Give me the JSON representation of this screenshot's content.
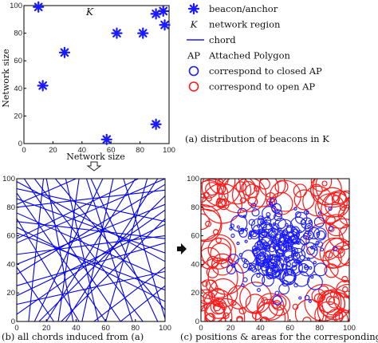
{
  "chart_data": [
    {
      "id": "a",
      "type": "scatter",
      "caption": "(a) distribution  of beacons in K",
      "xlabel": "Network size",
      "ylabel": "Network size",
      "region_label": "K",
      "xlim": [
        0,
        100
      ],
      "ylim": [
        0,
        100
      ],
      "xticks": [
        "0",
        "20",
        "40",
        "60",
        "80",
        "100"
      ],
      "yticks": [
        "0",
        "20",
        "40",
        "60",
        "80",
        "100"
      ],
      "marker_color": "#1a1aff",
      "points": [
        {
          "x": 10,
          "y": 99
        },
        {
          "x": 13,
          "y": 42
        },
        {
          "x": 28,
          "y": 66
        },
        {
          "x": 57,
          "y": 3
        },
        {
          "x": 64,
          "y": 80
        },
        {
          "x": 82,
          "y": 80
        },
        {
          "x": 91,
          "y": 94
        },
        {
          "x": 91,
          "y": 14
        },
        {
          "x": 96,
          "y": 96
        },
        {
          "x": 97,
          "y": 86
        }
      ]
    },
    {
      "id": "b",
      "type": "line",
      "caption": "(b) all chords induced from (a)",
      "xlim": [
        0,
        100
      ],
      "ylim": [
        0,
        100
      ],
      "xticks": [
        "0",
        "20",
        "40",
        "60",
        "80",
        "100"
      ],
      "yticks": [
        "0",
        "20",
        "40",
        "60",
        "80",
        "100"
      ],
      "line_color": "#0000ee",
      "chords": [
        [
          [
            0,
            98
          ],
          [
            100,
            42
          ]
        ],
        [
          [
            0,
            86
          ],
          [
            100,
            48
          ]
        ],
        [
          [
            0,
            80
          ],
          [
            100,
            92
          ]
        ],
        [
          [
            0,
            70
          ],
          [
            100,
            58
          ]
        ],
        [
          [
            0,
            62
          ],
          [
            100,
            22
          ]
        ],
        [
          [
            0,
            55
          ],
          [
            100,
            100
          ]
        ],
        [
          [
            0,
            47
          ],
          [
            100,
            60
          ]
        ],
        [
          [
            0,
            40
          ],
          [
            100,
            82
          ]
        ],
        [
          [
            0,
            33
          ],
          [
            100,
            96
          ]
        ],
        [
          [
            0,
            25
          ],
          [
            100,
            55
          ]
        ],
        [
          [
            0,
            18
          ],
          [
            100,
            68
          ]
        ],
        [
          [
            0,
            93
          ],
          [
            100,
            70
          ]
        ],
        [
          [
            0,
            12
          ],
          [
            100,
            35
          ]
        ],
        [
          [
            0,
            66
          ],
          [
            100,
            14
          ]
        ],
        [
          [
            0,
            76
          ],
          [
            100,
            30
          ]
        ],
        [
          [
            5,
            100
          ],
          [
            70,
            0
          ]
        ],
        [
          [
            12,
            100
          ],
          [
            85,
            0
          ]
        ],
        [
          [
            20,
            100
          ],
          [
            38,
            0
          ]
        ],
        [
          [
            26,
            100
          ],
          [
            100,
            8
          ]
        ],
        [
          [
            33,
            100
          ],
          [
            55,
            0
          ]
        ],
        [
          [
            42,
            100
          ],
          [
            28,
            0
          ]
        ],
        [
          [
            50,
            100
          ],
          [
            95,
            0
          ]
        ],
        [
          [
            58,
            100
          ],
          [
            12,
            0
          ]
        ],
        [
          [
            65,
            100
          ],
          [
            44,
            0
          ]
        ],
        [
          [
            72,
            100
          ],
          [
            100,
            2
          ]
        ],
        [
          [
            80,
            100
          ],
          [
            20,
            0
          ]
        ],
        [
          [
            88,
            100
          ],
          [
            60,
            0
          ]
        ],
        [
          [
            95,
            100
          ],
          [
            33,
            0
          ]
        ],
        [
          [
            18,
            100
          ],
          [
            8,
            0
          ]
        ],
        [
          [
            47,
            100
          ],
          [
            78,
            0
          ]
        ],
        [
          [
            0,
            90
          ],
          [
            60,
            0
          ]
        ],
        [
          [
            0,
            72
          ],
          [
            42,
            0
          ]
        ],
        [
          [
            0,
            38
          ],
          [
            25,
            0
          ]
        ],
        [
          [
            30,
            0
          ],
          [
            100,
            72
          ]
        ],
        [
          [
            52,
            0
          ],
          [
            100,
            38
          ]
        ],
        [
          [
            70,
            0
          ],
          [
            100,
            25
          ]
        ],
        [
          [
            0,
            58
          ],
          [
            82,
            100
          ]
        ],
        [
          [
            0,
            82
          ],
          [
            40,
            100
          ]
        ],
        [
          [
            15,
            0
          ],
          [
            100,
            88
          ]
        ],
        [
          [
            0,
            5
          ],
          [
            100,
            78
          ]
        ]
      ]
    },
    {
      "id": "c",
      "type": "scatter",
      "caption": "(c) positions & areas for the corresponding APs",
      "xlim": [
        0,
        100
      ],
      "ylim": [
        0,
        100
      ],
      "xticks": [
        "0",
        "20",
        "40",
        "60",
        "80",
        "100"
      ],
      "yticks": [
        "0",
        "20",
        "40",
        "60",
        "80",
        "100"
      ],
      "closed_color": "#1a1aff",
      "open_color": "#ff1a1a",
      "closed_count": 260,
      "open_count": 150
    }
  ],
  "legend": {
    "items": [
      {
        "symbol": "✱",
        "label": "beacon/anchor",
        "color": "#1a1aff"
      },
      {
        "symbol": "K",
        "label": "network region",
        "color": "#111111"
      },
      {
        "symbol": "line",
        "label": "chord",
        "color": "#1a1aff"
      },
      {
        "symbol": "AP",
        "label": "Attached Polygon",
        "color": "#111111"
      },
      {
        "symbol": "circle",
        "label": "correspond to closed AP",
        "color": "#1a1aff"
      },
      {
        "symbol": "circle",
        "label": "correspond to open AP",
        "color": "#ff1a1a"
      }
    ]
  }
}
